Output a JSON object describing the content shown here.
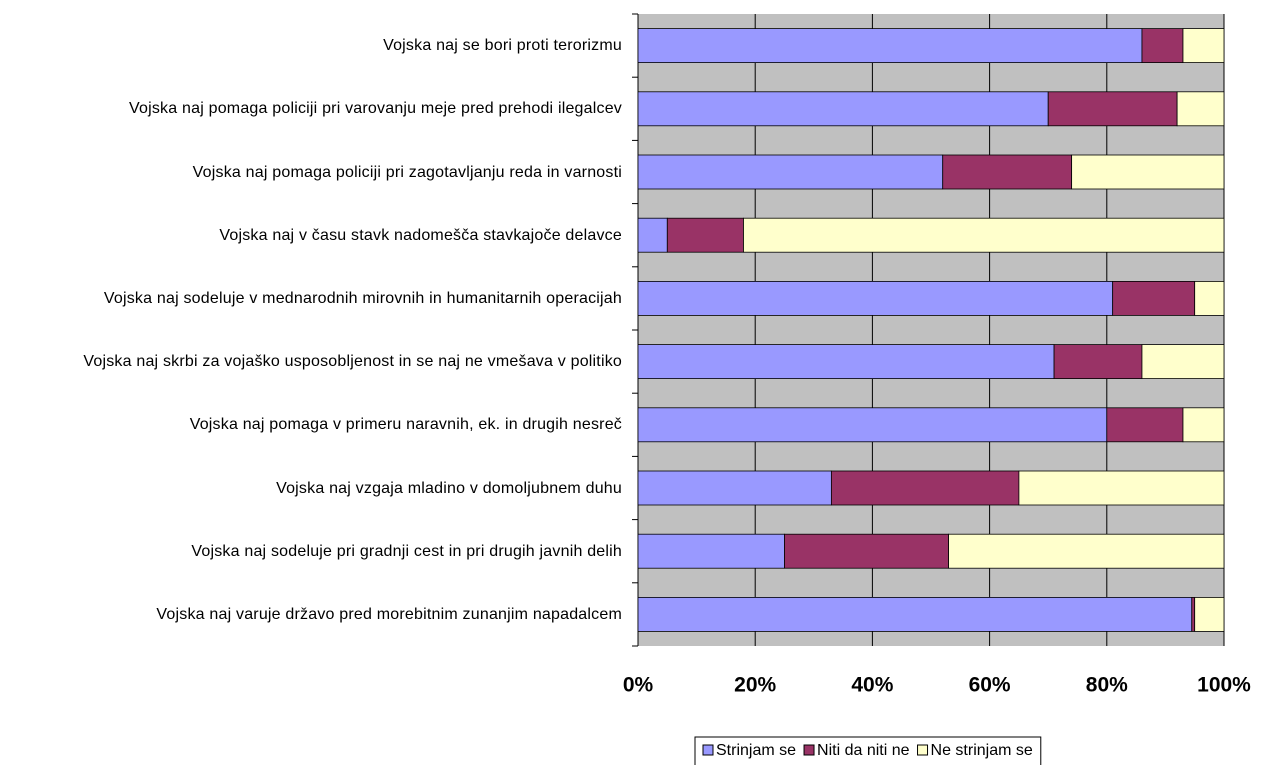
{
  "chart_data": {
    "type": "stacked_bar_horizontal",
    "categories": [
      "Vojska naj se bori proti terorizmu",
      "Vojska naj pomaga policiji pri varovanju meje pred prehodi ilegalcev",
      "Vojska naj pomaga policiji pri zagotavljanju reda in varnosti",
      "Vojska naj v času stavk nadomešča stavkajoče delavce",
      "Vojska naj sodeluje v mednarodnih mirovnih in humanitarnih operacijah",
      "Vojska naj skrbi za vojaško usposobljenost in se naj ne vmešava v politiko",
      "Vojska naj pomaga v primeru naravnih, ek. in drugih nesreč",
      "Vojska naj vzgaja mladino v domoljubnem duhu",
      "Vojska naj sodeluje pri gradnji cest in pri drugih javnih delih",
      "Vojska naj varuje državo pred morebitnim zunanjim napadalcem"
    ],
    "series": [
      {
        "name": "Strinjam se",
        "color": "#9999ff",
        "values": [
          86,
          70,
          52,
          5,
          81,
          71,
          80,
          33,
          25,
          94.5
        ]
      },
      {
        "name": "Niti da niti ne",
        "color": "#993366",
        "values": [
          7,
          22,
          22,
          13,
          14,
          15,
          13,
          32,
          28,
          0.5
        ]
      },
      {
        "name": "Ne strinjam se",
        "color": "#ffffcc",
        "values": [
          7,
          8,
          26,
          82,
          5,
          14,
          7,
          35,
          47,
          5
        ]
      }
    ],
    "xlim": [
      0,
      100
    ],
    "xticks": [
      {
        "value": 0,
        "label": "0%"
      },
      {
        "value": 20,
        "label": "20%"
      },
      {
        "value": 40,
        "label": "40%"
      },
      {
        "value": 60,
        "label": "60%"
      },
      {
        "value": 80,
        "label": "80%"
      },
      {
        "value": 100,
        "label": "100%"
      }
    ],
    "grid": true,
    "legend": "bottom"
  }
}
